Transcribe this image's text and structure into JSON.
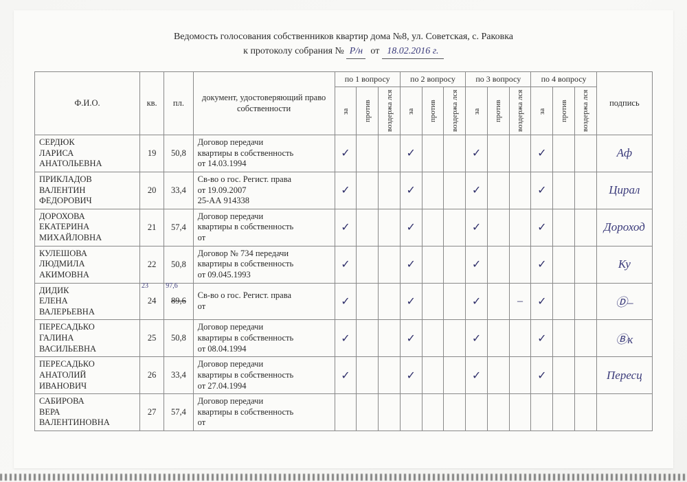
{
  "header": {
    "line1": "Ведомость голосования собственников квартир дома №8, ул. Советская, с. Раковка",
    "line2_prefix": "к протоколу собрания №",
    "protocol_no": "Р/н",
    "date_label": "от",
    "protocol_date": "18.02.2016 г."
  },
  "columns": {
    "fio": "Ф.И.О.",
    "kv": "кв.",
    "pl": "пл.",
    "doc": "документ, удостоверяющий право собственности",
    "groups": [
      "по 1 вопросу",
      "по 2 вопросу",
      "по 3 вопросу",
      "по 4 вопросу"
    ],
    "votes": [
      "за",
      "против",
      "воздержа лся"
    ],
    "sign": "подпись"
  },
  "rows": [
    {
      "fio": "СЕРДЮК\nЛАРИСА\nАНАТОЛЬЕВНА",
      "kv": "19",
      "pl": "50,8",
      "doc": "Договор передачи\nквартиры в собственность\nот 14.03.1994",
      "v": [
        "✓",
        "",
        "",
        "✓",
        "",
        "",
        "✓",
        "",
        "",
        "✓",
        "",
        ""
      ],
      "sign": "Aф"
    },
    {
      "fio": "ПРИКЛАДОВ\nВАЛЕНТИН\nФЕДОРОВИЧ",
      "kv": "20",
      "pl": "33,4",
      "doc": "Св-во о гос. Регист. права\nот 19.09.2007\n 25-АА  914338",
      "v": [
        "✓",
        "",
        "",
        "✓",
        "",
        "",
        "✓",
        "",
        "",
        "✓",
        "",
        ""
      ],
      "sign": "Цирал"
    },
    {
      "fio": "ДОРОХОВА\nЕКАТЕРИНА\nМИХАЙЛОВНА",
      "kv": "21",
      "pl": "57,4",
      "doc": " Договор передачи\nквартиры в собственность\nот",
      "v": [
        "✓",
        "",
        "",
        "✓",
        "",
        "",
        "✓",
        "",
        "",
        "✓",
        "",
        ""
      ],
      "sign": "Дороход"
    },
    {
      "fio": "КУЛЕШОВА\nЛЮДМИЛА\nАКИМОВНА",
      "kv": "22",
      "pl": "50,8",
      "doc": "Договор № 734 передачи\nквартиры в собственность\nот 09.045.1993",
      "v": [
        "✓",
        "",
        "",
        "✓",
        "",
        "",
        "✓",
        "",
        "",
        "✓",
        "",
        ""
      ],
      "sign": "Ку"
    },
    {
      "fio": "ДИДИК\nЕЛЕНА\nВАЛЕРЬЕВНА",
      "kv": "24",
      "pl": "89,6",
      "kv_hw": "23",
      "pl_hw": "97,6",
      "pl_strike": true,
      "doc": "Св-во о гос. Регист. права\nот",
      "v": [
        "✓",
        "",
        "",
        "✓",
        "",
        "",
        "✓",
        "",
        "–",
        "✓",
        "",
        ""
      ],
      "sign": "Ⓓ–"
    },
    {
      "fio": "ПЕРЕСАДЬКО\nГАЛИНА\nВАСИЛЬЕВНА",
      "kv": "25",
      "pl": "50,8",
      "doc": "Договор передачи\nквартиры в собственность\nот 08.04.1994",
      "v": [
        "✓",
        "",
        "",
        "✓",
        "",
        "",
        "✓",
        "",
        "",
        "✓",
        "",
        ""
      ],
      "sign": "Ⓑк"
    },
    {
      "fio": "ПЕРЕСАДЬКО\nАНАТОЛИЙ\nИВАНОВИЧ",
      "kv": "26",
      "pl": "33,4",
      "doc": "Договор передачи\nквартиры в собственность\nот 27.04.1994",
      "v": [
        "✓",
        "",
        "",
        "✓",
        "",
        "",
        "✓",
        "",
        "",
        "✓",
        "",
        ""
      ],
      "sign": "Пересц"
    },
    {
      "fio": "САБИРОВА\nВЕРА\nВАЛЕНТИНОВНА",
      "kv": "27",
      "pl": "57,4",
      "doc": "Договор передачи\nквартиры в собственность\nот",
      "v": [
        "",
        "",
        "",
        "",
        "",
        "",
        "",
        "",
        "",
        "",
        "",
        ""
      ],
      "sign": ""
    }
  ],
  "styling": {
    "page_bg": "#f5f5f3",
    "paper_bg": "#fbfbf9",
    "border_color": "#888888",
    "text_color": "#2a2a2a",
    "handwriting_color": "#3a3a7a",
    "header_fontsize": 14,
    "cell_fontsize": 12.5,
    "vertical_label_fontsize": 11
  }
}
